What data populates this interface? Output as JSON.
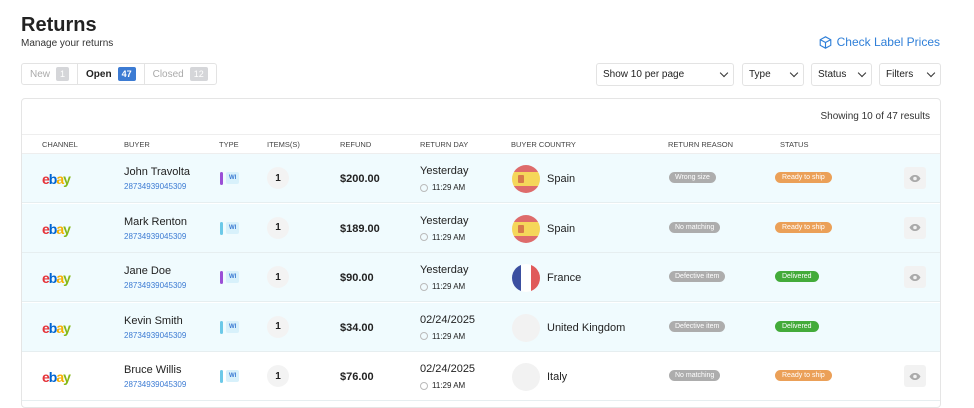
{
  "header": {
    "title": "Returns",
    "subtitle": "Manage your returns",
    "check_label": "Check Label Prices"
  },
  "tabs": [
    {
      "label": "New",
      "count": "1"
    },
    {
      "label": "Open",
      "count": "47",
      "active": true
    },
    {
      "label": "Closed",
      "count": "12"
    }
  ],
  "filters": {
    "per_page": "Show 10 per page",
    "type": "Type",
    "status": "Status",
    "filters": "Filters"
  },
  "showing": "Showing 10 of 47 results",
  "columns": [
    "CHANNEL",
    "BUYER",
    "TYPE",
    "ITEMS(S)",
    "REFUND",
    "RETURN DAY",
    "BUYER COUNTRY",
    "RETURN REASON",
    "STATUS"
  ],
  "colors": {
    "accent": "#3c7bd3",
    "ready": "#eba058",
    "delivered": "#43ab3a",
    "reason": "#adadad",
    "type_purple": "#9b4fd6",
    "type_blue": "#6cc9e8"
  },
  "rows": [
    {
      "channel": "ebay",
      "buyer": "John Travolta",
      "id": "28734939045309",
      "type": "WI",
      "type_color": "purple",
      "items": "1",
      "refund": "$200.00",
      "day": "Yesterday",
      "time": "11:29 AM",
      "country": "Spain",
      "flag": "es",
      "reason": "Wrong size",
      "status": "Ready to ship",
      "eye": true,
      "highlight": true
    },
    {
      "channel": "ebay",
      "buyer": "Mark Renton",
      "id": "28734939045309",
      "type": "WI",
      "type_color": "blue",
      "items": "1",
      "refund": "$189.00",
      "day": "Yesterday",
      "time": "11:29 AM",
      "country": "Spain",
      "flag": "es",
      "reason": "No matching",
      "status": "Ready to ship",
      "eye": true,
      "highlight": true
    },
    {
      "channel": "ebay",
      "buyer": "Jane Doe",
      "id": "28734939045309",
      "type": "WI",
      "type_color": "purple",
      "items": "1",
      "refund": "$90.00",
      "day": "Yesterday",
      "time": "11:29 AM",
      "country": "France",
      "flag": "fr",
      "reason": "Defective item",
      "status": "Delivered",
      "eye": true,
      "highlight": true
    },
    {
      "channel": "ebay",
      "buyer": "Kevin Smith",
      "id": "28734939045309",
      "type": "WI",
      "type_color": "blue",
      "items": "1",
      "refund": "$34.00",
      "day": "02/24/2025",
      "time": "11:29 AM",
      "country": "United Kingdom",
      "flag": "",
      "reason": "Defective item",
      "status": "Delivered",
      "eye": false,
      "highlight": true
    },
    {
      "channel": "ebay",
      "buyer": "Bruce Willis",
      "id": "28734939045309",
      "type": "WI",
      "type_color": "blue",
      "items": "1",
      "refund": "$76.00",
      "day": "02/24/2025",
      "time": "11:29 AM",
      "country": "Italy",
      "flag": "",
      "reason": "No matching",
      "status": "Ready to ship",
      "eye": true,
      "highlight": false
    }
  ]
}
